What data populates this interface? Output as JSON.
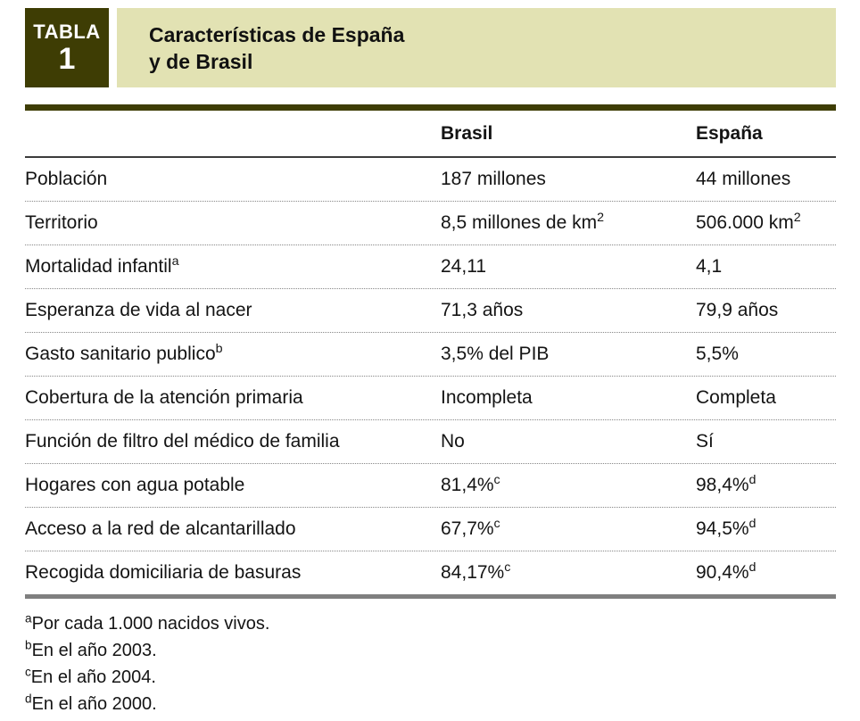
{
  "colors": {
    "box_bg": "#3e3d04",
    "band_bg": "#e2e2b3",
    "rule_dark": "#3e3d04",
    "rule_gray": "#7f7f7f"
  },
  "header": {
    "label": "TABLA",
    "number": "1",
    "title_line1": "Características de España",
    "title_line2": "y de Brasil"
  },
  "table": {
    "columns": {
      "brasil": "Brasil",
      "espana": "España"
    },
    "rows": [
      {
        "label": "Población",
        "label_sup": "",
        "brasil": "187 millones",
        "brasil_sup": "",
        "espana": "44 millones",
        "espana_sup": ""
      },
      {
        "label": "Territorio",
        "label_sup": "",
        "brasil": "8,5 millones de km",
        "brasil_sup": "2",
        "espana": "506.000 km",
        "espana_sup": "2"
      },
      {
        "label": "Mortalidad infantil",
        "label_sup": "a",
        "brasil": "24,11",
        "brasil_sup": "",
        "espana": "4,1",
        "espana_sup": ""
      },
      {
        "label": "Esperanza de vida al nacer",
        "label_sup": "",
        "brasil": "71,3 años",
        "brasil_sup": "",
        "espana": "79,9 años",
        "espana_sup": ""
      },
      {
        "label": "Gasto sanitario publico",
        "label_sup": "b",
        "brasil": "3,5% del PIB",
        "brasil_sup": "",
        "espana": "5,5%",
        "espana_sup": ""
      },
      {
        "label": "Cobertura de la atención primaria",
        "label_sup": "",
        "brasil": "Incompleta",
        "brasil_sup": "",
        "espana": "Completa",
        "espana_sup": ""
      },
      {
        "label": "Función de filtro del médico de familia",
        "label_sup": "",
        "brasil": "No",
        "brasil_sup": "",
        "espana": "Sí",
        "espana_sup": ""
      },
      {
        "label": "Hogares con agua potable",
        "label_sup": "",
        "brasil": "81,4%",
        "brasil_sup": "c",
        "espana": "98,4%",
        "espana_sup": "d"
      },
      {
        "label": "Acceso a la red de alcantarillado",
        "label_sup": "",
        "brasil": "67,7%",
        "brasil_sup": "c",
        "espana": "94,5%",
        "espana_sup": "d"
      },
      {
        "label": "Recogida domiciliaria de basuras",
        "label_sup": "",
        "brasil": "84,17%",
        "brasil_sup": "c",
        "espana": "90,4%",
        "espana_sup": "d"
      }
    ],
    "footnotes": [
      {
        "sup": "a",
        "text": "Por cada 1.000 nacidos vivos."
      },
      {
        "sup": "b",
        "text": "En el año 2003."
      },
      {
        "sup": "c",
        "text": "En el año 2004."
      },
      {
        "sup": "d",
        "text": "En el año 2000."
      }
    ]
  }
}
